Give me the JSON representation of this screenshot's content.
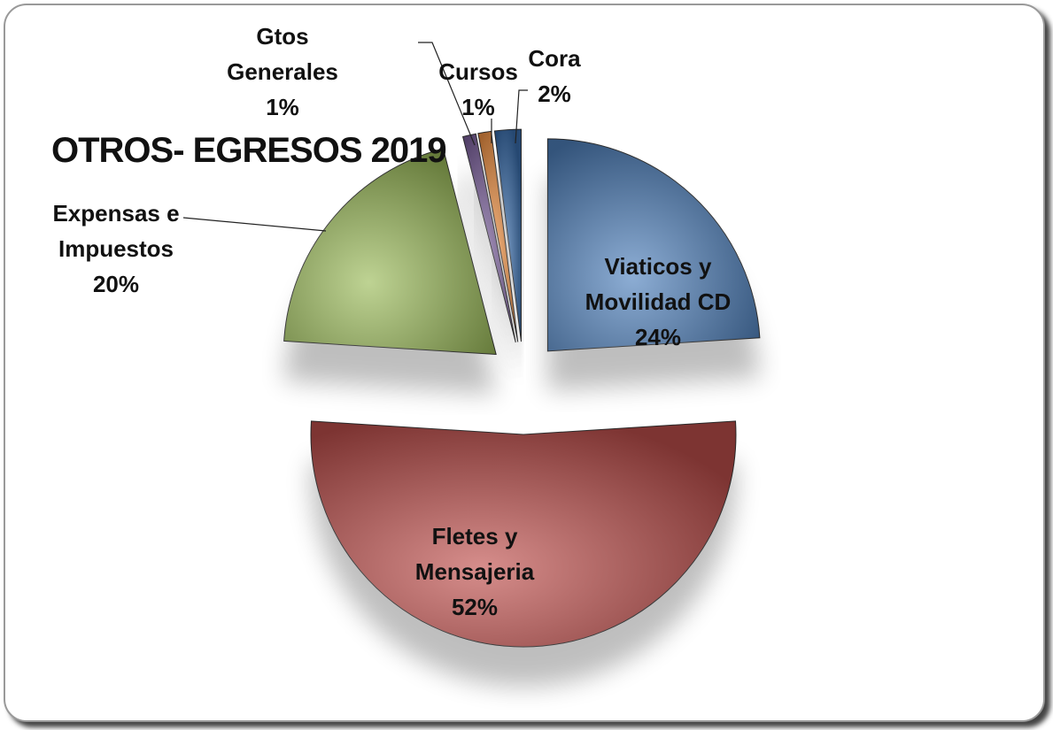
{
  "chart_data": {
    "type": "pie",
    "title": "OTROS- EGRESOS 2019",
    "categories": [
      "Viaticos y Movilidad CD",
      "Fletes y Mensajeria",
      "Expensas e Impuestos",
      "Gtos Generales",
      "Cursos",
      "Cora"
    ],
    "values": [
      24,
      52,
      20,
      1,
      1,
      2
    ],
    "value_labels": [
      "24%",
      "52%",
      "20%",
      "1%",
      "1%",
      "2%"
    ],
    "colors": [
      "#4f81bd",
      "#c0504d",
      "#9bbb59",
      "#8064a2",
      "#f79646",
      "#3a6faf"
    ]
  }
}
